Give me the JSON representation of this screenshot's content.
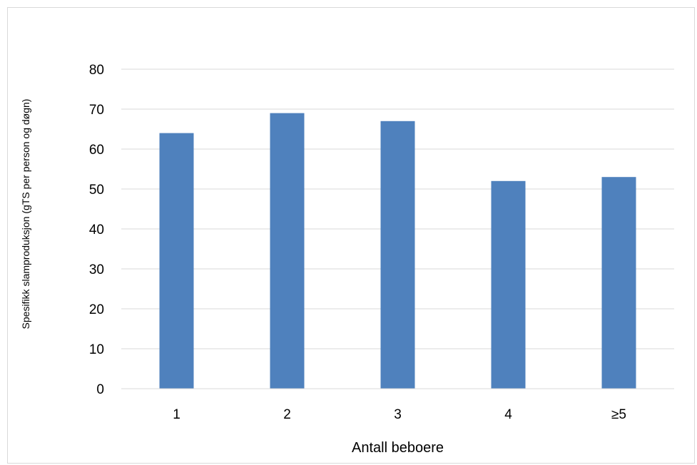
{
  "chart_data": {
    "type": "bar",
    "title": "",
    "categories": [
      "1",
      "2",
      "3",
      "4",
      "≥5"
    ],
    "series": [
      {
        "values": [
          64,
          69,
          67,
          52,
          53
        ],
        "color": "#4f81bd"
      }
    ],
    "xlabel": "Antall beboere",
    "ylabel": "Spesifikk slamproduksjon (gTS per person og døgn)",
    "ylim": [
      0,
      80
    ],
    "yticks": [
      0,
      10,
      20,
      30,
      40,
      50,
      60,
      70,
      80
    ],
    "grid": true,
    "grid_color": "#d9d9d9",
    "legend": "none"
  }
}
